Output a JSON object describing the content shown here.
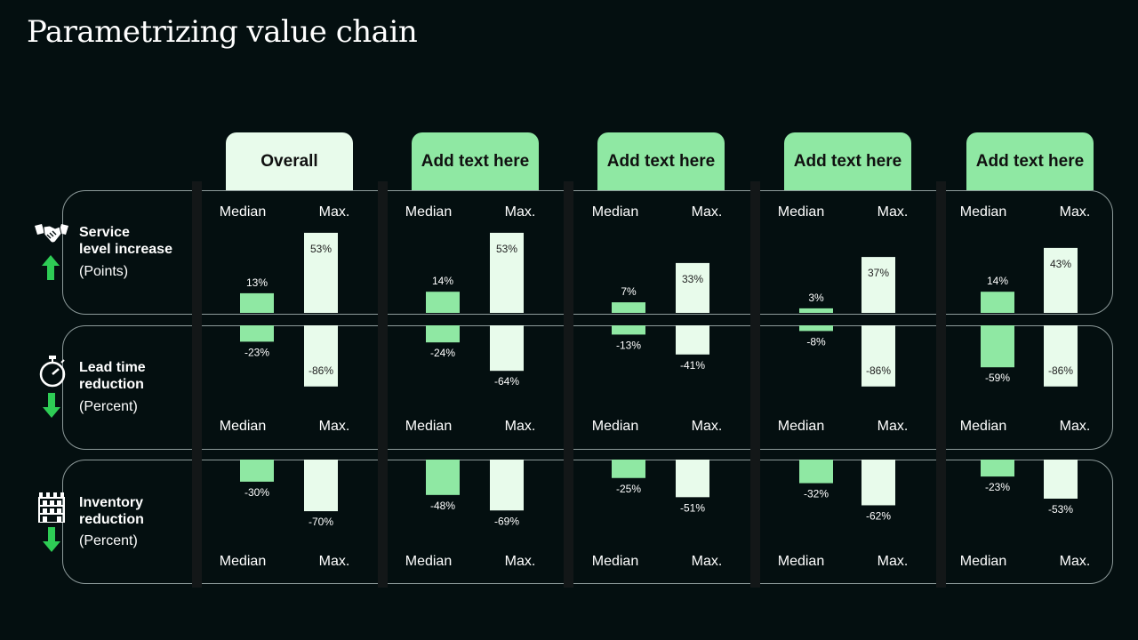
{
  "title": "Parametrizing value chain",
  "columns": [
    "Overall",
    "Add text here",
    "Add text here",
    "Add text here",
    "Add text here"
  ],
  "sublabels": {
    "median": "Median",
    "max": "Max."
  },
  "rows": [
    {
      "title_line1": "Service",
      "title_line2": "level increase",
      "unit": "(Points)",
      "icon": "handshake-icon",
      "arrow": "arrow-up-icon"
    },
    {
      "title_line1": "Lead time",
      "title_line2": "reduction",
      "unit": "(Percent)",
      "icon": "stopwatch-icon",
      "arrow": "arrow-down-icon"
    },
    {
      "title_line1": "Inventory",
      "title_line2": "reduction",
      "unit": "(Percent)",
      "icon": "warehouse-icon",
      "arrow": "arrow-down-icon"
    }
  ],
  "colors": {
    "median_bar": "#8fe8a3",
    "max_bar": "#e8fbeb",
    "header": "#8fe8a3",
    "header_overall": "#e8fbeb",
    "arrow": "#2ecc55"
  },
  "chart_data": {
    "type": "bar",
    "groups": [
      "Overall",
      "Add text here",
      "Add text here",
      "Add text here",
      "Add text here"
    ],
    "series_labels": [
      "Median",
      "Max."
    ],
    "service_level": {
      "median": [
        13,
        14,
        7,
        3,
        14
      ],
      "max": [
        53,
        53,
        33,
        37,
        43
      ]
    },
    "lead_time": {
      "median": [
        -23,
        -24,
        -13,
        -8,
        -59
      ],
      "max": [
        -86,
        -64,
        -41,
        -86,
        -86
      ]
    },
    "inventory": {
      "median": [
        -30,
        -48,
        -25,
        -32,
        -23
      ],
      "max": [
        -70,
        -69,
        -51,
        -62,
        -53
      ]
    }
  }
}
